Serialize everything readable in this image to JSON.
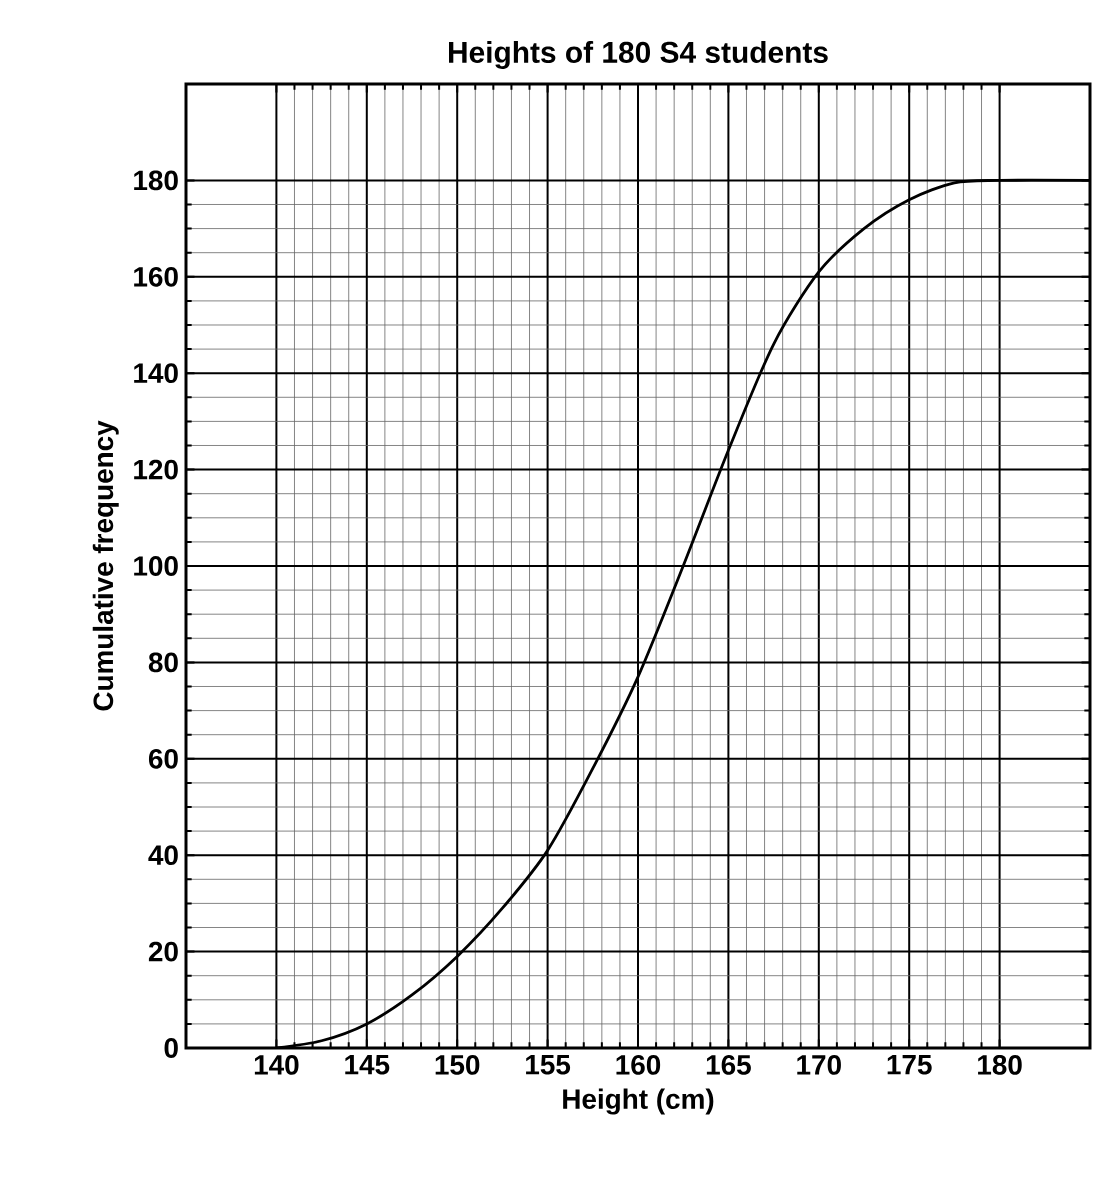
{
  "chart_data": {
    "type": "line",
    "title": "Heights of 180 S4 students",
    "xlabel": "Height (cm)",
    "ylabel": "Cumulative frequency",
    "x": [
      140,
      142.5,
      145,
      147.5,
      150,
      152.5,
      155,
      157.5,
      160,
      162.5,
      165,
      167.5,
      170,
      172.5,
      175,
      177.5,
      180,
      185
    ],
    "series": [
      {
        "color": "#000000",
        "values": [
          0,
          1.5,
          5,
          11,
          19,
          29,
          41,
          58,
          77,
          100,
          124,
          146,
          161,
          170,
          176,
          179.5,
          180,
          180
        ]
      }
    ],
    "xlim": [
      135,
      185
    ],
    "ylim": [
      0,
      200
    ],
    "xticks": [
      140,
      145,
      150,
      155,
      160,
      165,
      170,
      175,
      180
    ],
    "yticks": [
      0,
      20,
      40,
      60,
      80,
      100,
      120,
      140,
      160,
      180
    ],
    "grid": true,
    "marker": "none",
    "line_style": "solid"
  }
}
